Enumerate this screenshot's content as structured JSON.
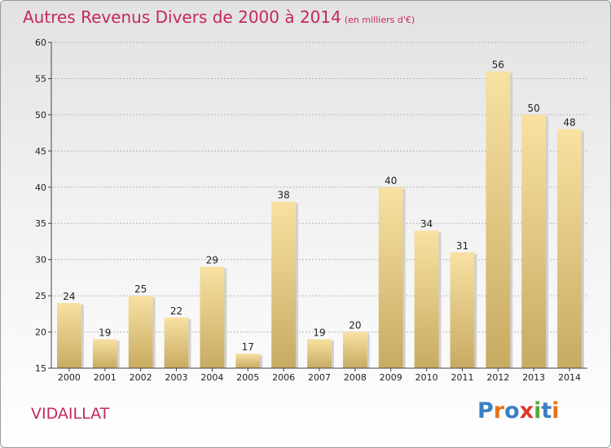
{
  "header": {
    "title": "Autres Revenus Divers de 2000 à 2014",
    "subtitle": "(en milliers d'€)"
  },
  "footer": {
    "place": "VIDAILLAT",
    "logo": "Proxiti",
    "logo_colors": [
      "#3b7fc4",
      "#e8731c",
      "#3b7fc4",
      "#e03a2f",
      "#5aa83a",
      "#3b7fc4",
      "#e8731c"
    ]
  },
  "colors": {
    "title": "#c4295b",
    "bar_top": "#f8e1a2",
    "bar_bottom": "#c8ab62",
    "grid": "#b8b8b8"
  },
  "chart_data": {
    "type": "bar",
    "title": "Autres Revenus Divers de 2000 à 2014",
    "subtitle": "(en milliers d'€)",
    "categories": [
      "2000",
      "2001",
      "2002",
      "2003",
      "2004",
      "2005",
      "2006",
      "2007",
      "2008",
      "2009",
      "2010",
      "2011",
      "2012",
      "2013",
      "2014"
    ],
    "values": [
      24,
      19,
      25,
      22,
      29,
      17,
      38,
      19,
      20,
      40,
      34,
      31,
      56,
      50,
      48
    ],
    "ylim": [
      15,
      60
    ],
    "yticks": [
      15,
      20,
      25,
      30,
      35,
      40,
      45,
      50,
      55,
      60
    ],
    "grid": true,
    "data_labels": true
  }
}
